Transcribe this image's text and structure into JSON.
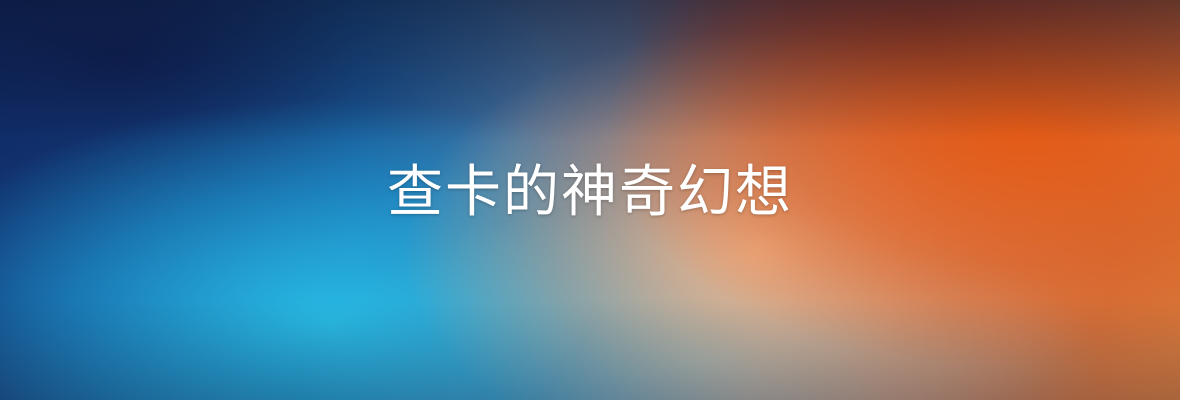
{
  "banner": {
    "title": "查卡的神奇幻想"
  }
}
